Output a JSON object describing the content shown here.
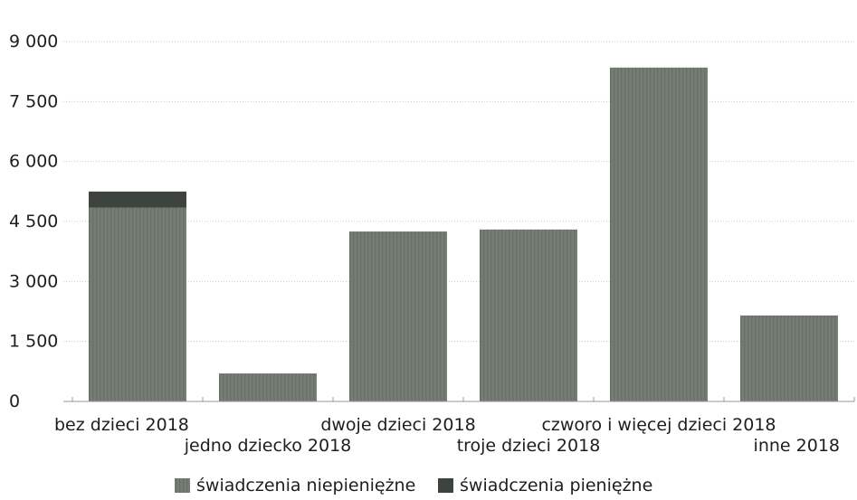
{
  "chart_data": {
    "type": "bar",
    "stacked": true,
    "title": "",
    "xlabel": "",
    "ylabel": "",
    "ylim": [
      0,
      9000
    ],
    "y_ticks": [
      0,
      1500,
      3000,
      4500,
      6000,
      7500,
      9000
    ],
    "y_tick_labels": [
      "0",
      "1 500",
      "3 000",
      "4 500",
      "6 000",
      "7 500",
      "9 000"
    ],
    "grid": true,
    "legend_position": "bottom",
    "categories": [
      "bez dzieci 2018",
      "jedno dziecko 2018",
      "dwoje dzieci 2018",
      "troje dzieci 2018",
      "czworo i więcej dzieci 2018",
      "inne 2018"
    ],
    "series": [
      {
        "name": "świadczenia niepieniężne",
        "color": "#6f776f",
        "values": [
          4850,
          700,
          4250,
          4300,
          8350,
          2150
        ]
      },
      {
        "name": "świadczenia pieniężne",
        "color": "#3d443d",
        "values": [
          400,
          0,
          0,
          0,
          0,
          0
        ]
      }
    ]
  }
}
